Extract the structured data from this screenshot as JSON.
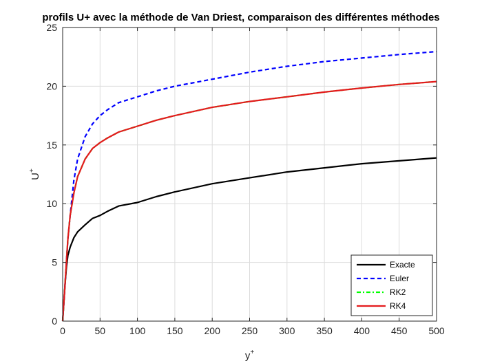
{
  "chart_data": {
    "type": "line",
    "title": "profils U+ avec la méthode de Van Driest, comparaison des différentes méthodes",
    "xlabel": "y",
    "xlabel_sup": "+",
    "ylabel": "U",
    "ylabel_sup": "+",
    "xlim": [
      0,
      500
    ],
    "ylim": [
      0,
      25
    ],
    "xticks": [
      0,
      50,
      100,
      150,
      200,
      250,
      300,
      350,
      400,
      450,
      500
    ],
    "yticks": [
      0,
      5,
      10,
      15,
      20,
      25
    ],
    "grid": true,
    "legend_position": "bottom-right",
    "x": [
      0,
      1,
      2,
      3,
      5,
      7,
      10,
      15,
      20,
      30,
      40,
      50,
      60,
      75,
      100,
      125,
      150,
      200,
      250,
      300,
      350,
      400,
      450,
      500
    ],
    "series": [
      {
        "name": "Exacte",
        "color": "#000000",
        "dash": "solid",
        "values": [
          0,
          1.0,
          2.0,
          2.95,
          4.55,
          5.6,
          6.3,
          7.1,
          7.6,
          8.2,
          8.75,
          9.0,
          9.35,
          9.8,
          10.1,
          10.6,
          11.0,
          11.7,
          12.2,
          12.7,
          13.05,
          13.4,
          13.65,
          13.9
        ]
      },
      {
        "name": "Euler",
        "color": "#0000ff",
        "dash": "dashed",
        "values": [
          0,
          1.0,
          2.0,
          3.0,
          5.0,
          7.0,
          9.0,
          12.0,
          13.8,
          15.7,
          16.8,
          17.5,
          18.0,
          18.6,
          19.1,
          19.6,
          20.0,
          20.6,
          21.2,
          21.7,
          22.1,
          22.4,
          22.7,
          22.95
        ]
      },
      {
        "name": "RK2",
        "color": "#00ff00",
        "dash": "dashdot",
        "values": [
          0,
          1.0,
          2.0,
          3.0,
          5.0,
          7.0,
          9.0,
          10.9,
          12.3,
          13.8,
          14.7,
          15.2,
          15.6,
          16.1,
          16.6,
          17.1,
          17.5,
          18.2,
          18.7,
          19.1,
          19.5,
          19.85,
          20.15,
          20.4
        ]
      },
      {
        "name": "RK4",
        "color": "#e41a1c",
        "dash": "solid",
        "values": [
          0,
          1.0,
          2.0,
          3.0,
          5.0,
          7.0,
          9.0,
          10.9,
          12.3,
          13.8,
          14.7,
          15.2,
          15.6,
          16.1,
          16.6,
          17.1,
          17.5,
          18.2,
          18.7,
          19.1,
          19.5,
          19.85,
          20.15,
          20.4
        ]
      }
    ]
  }
}
